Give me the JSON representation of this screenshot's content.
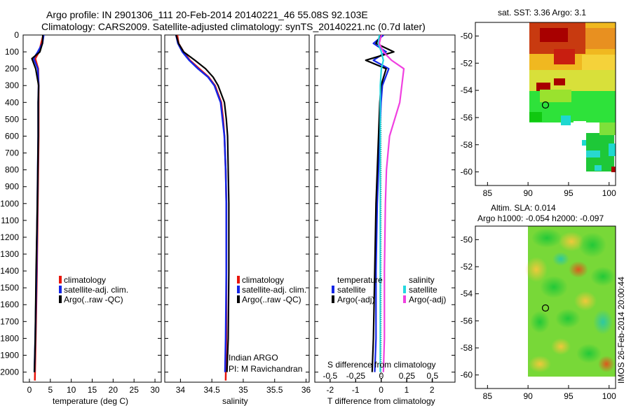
{
  "header": {
    "title1": "Argo profile: IN 2901306_111 20-Feb-2014 20140221_46 55.08S 92.103E",
    "title2": "Climatology: CARS2009. Satellite-adjusted climatology: synTS_20140221.nc (0.7d later)"
  },
  "depth_ticks": [
    "0",
    "100",
    "200",
    "300",
    "400",
    "500",
    "600",
    "700",
    "800",
    "900",
    "1000",
    "1100",
    "1200",
    "1300",
    "1400",
    "1500",
    "1600",
    "1700",
    "1800",
    "1900",
    "2000"
  ],
  "colors": {
    "climatology": "#e8160c",
    "satellite": "#1426e6",
    "argo": "#000000",
    "sat_salinity": "#24d8e0",
    "argo_salinity_diff": "#f040e0"
  },
  "panels": {
    "temperature": {
      "xlabel": "temperature (deg C)",
      "xticks": [
        "0",
        "5",
        "10",
        "15",
        "20",
        "25",
        "30"
      ],
      "legend": [
        "climatology",
        "satellite-adj. clim.",
        "Argo(..raw -QC)"
      ]
    },
    "salinity": {
      "xlabel": "salinity",
      "xticks": [
        "34",
        "34.5",
        "35",
        "35.5",
        "36"
      ],
      "legend": [
        "climatology",
        "satellite-adj. clim.",
        "Argo(..raw -QC)"
      ],
      "note1": "Indian ARGO",
      "note2": "PI: M Ravichandran"
    },
    "difference": {
      "xlabel": "T difference from climatology",
      "xticks": [
        "-2",
        "-1",
        "0",
        "1",
        "2"
      ],
      "xlabel_top": "S difference from climatology",
      "xticks_top": [
        "-0.5",
        "-0.25",
        "0",
        "0.25",
        "0.5"
      ],
      "legend_t_title": "temperature",
      "legend_t": [
        "satellite",
        "Argo(-adj)"
      ],
      "legend_s_title": "salinity",
      "legend_s": [
        "satellite",
        "Argo(-adj)"
      ]
    }
  },
  "maps": {
    "sst": {
      "title": "sat. SST: 3.36 Argo: 3.1",
      "xticks": [
        "85",
        "90",
        "95",
        "100"
      ],
      "yticks": [
        "-50",
        "-52",
        "-54",
        "-56",
        "-58",
        "-60"
      ]
    },
    "sla": {
      "title1": "Altim. SLA: 0.014",
      "title2": "Argo h1000: -0.054 h2000: -0.097",
      "xticks": [
        "85",
        "90",
        "95",
        "100"
      ],
      "yticks": [
        "-50",
        "-52",
        "-54",
        "-56",
        "-58",
        "-60"
      ]
    },
    "float_position": {
      "lon": 92.103,
      "lat": -55.08
    }
  },
  "footer": {
    "stamp": "IMOS 26-Feb-2014 20:00:44"
  },
  "chart_data": [
    {
      "type": "line",
      "title": "",
      "xlabel": "temperature (deg C)",
      "ylabel": "",
      "xlim": [
        -1.5,
        31.5
      ],
      "ylim": [
        2060,
        0
      ],
      "series": [
        {
          "name": "climatology",
          "x": [
            3.3,
            2.8,
            2.3,
            1.4,
            2.1,
            2.2,
            2.2,
            2.2,
            2.1,
            2.0,
            1.8,
            1.5,
            1.3
          ],
          "y": [
            0,
            50,
            100,
            140,
            200,
            300,
            400,
            600,
            800,
            1000,
            1400,
            1800,
            2050
          ]
        },
        {
          "name": "satellite-adj. clim.",
          "x": [
            3.4,
            3.1,
            2.0,
            1.0,
            2.0,
            2.2,
            2.1,
            2.1,
            2.0,
            1.9,
            1.7,
            1.4,
            1.2
          ],
          "y": [
            0,
            50,
            100,
            140,
            200,
            300,
            400,
            600,
            800,
            1000,
            1400,
            1800,
            2000
          ]
        },
        {
          "name": "Argo(..raw -QC)",
          "x": [
            3.2,
            3.1,
            2.5,
            0.6,
            1.5,
            2.2,
            2.1,
            2.1,
            2.0,
            1.9,
            1.6,
            1.4,
            1.2
          ],
          "y": [
            0,
            50,
            100,
            140,
            200,
            300,
            400,
            600,
            800,
            1000,
            1400,
            1800,
            2000
          ]
        }
      ]
    },
    {
      "type": "line",
      "title": "",
      "xlabel": "salinity",
      "ylabel": "",
      "xlim": [
        33.75,
        36.05
      ],
      "ylim": [
        2060,
        0
      ],
      "series": [
        {
          "name": "climatology",
          "x": [
            33.95,
            33.97,
            34.05,
            34.15,
            34.3,
            34.45,
            34.55,
            34.6,
            34.65,
            34.68,
            34.7,
            34.72,
            34.73,
            34.73,
            34.73,
            34.72
          ],
          "y": [
            0,
            50,
            100,
            150,
            200,
            250,
            300,
            350,
            400,
            500,
            600,
            800,
            1000,
            1400,
            1800,
            2050
          ]
        },
        {
          "name": "satellite-adj. clim.",
          "x": [
            33.93,
            33.96,
            34.03,
            34.14,
            34.28,
            34.44,
            34.54,
            34.59,
            34.64,
            34.67,
            34.7,
            34.72,
            34.73,
            34.73,
            34.72,
            34.71
          ],
          "y": [
            0,
            50,
            100,
            150,
            200,
            250,
            300,
            350,
            400,
            500,
            600,
            800,
            1000,
            1400,
            1800,
            2000
          ]
        },
        {
          "name": "Argo(..raw -QC)",
          "x": [
            33.93,
            33.97,
            34.05,
            34.23,
            34.4,
            34.52,
            34.6,
            34.65,
            34.7,
            34.73,
            34.75,
            34.76,
            34.77,
            34.77,
            34.76,
            34.74
          ],
          "y": [
            0,
            50,
            100,
            150,
            200,
            250,
            300,
            350,
            400,
            500,
            600,
            800,
            1000,
            1400,
            1800,
            2000
          ]
        }
      ]
    },
    {
      "type": "line",
      "title": "",
      "xlabel": "T difference from climatology",
      "ylabel": "",
      "xlim": [
        -2.6,
        2.9
      ],
      "ylim": [
        2060,
        0
      ],
      "series": [
        {
          "name": "temperature satellite",
          "x": [
            0.1,
            -0.3,
            0.2,
            -0.3,
            0.3,
            0.05,
            0.0,
            -0.05,
            -0.1,
            -0.15,
            -0.2,
            -0.2,
            -0.25
          ],
          "y": [
            0,
            50,
            100,
            150,
            200,
            300,
            400,
            600,
            800,
            1000,
            1400,
            1800,
            2000
          ]
        },
        {
          "name": "temperature Argo(-adj)",
          "x": [
            0.0,
            -0.2,
            0.5,
            -0.6,
            0.2,
            0.0,
            -0.05,
            -0.1,
            -0.15,
            -0.2,
            -0.25,
            -0.3,
            -0.35
          ],
          "y": [
            0,
            50,
            100,
            150,
            200,
            300,
            400,
            600,
            800,
            1000,
            1400,
            1800,
            2000
          ]
        }
      ]
    },
    {
      "type": "line",
      "title": "",
      "xlabel": "S difference from climatology",
      "ylabel": "",
      "xlim": [
        -0.65,
        0.72
      ],
      "ylim": [
        2060,
        0
      ],
      "series": [
        {
          "name": "salinity satellite",
          "x": [
            -0.02,
            -0.03,
            0.0,
            0.02,
            0.0,
            -0.01,
            -0.01,
            -0.01,
            -0.01,
            -0.01,
            -0.01,
            -0.01,
            -0.01
          ],
          "y": [
            0,
            50,
            100,
            150,
            200,
            300,
            400,
            600,
            800,
            1000,
            1400,
            1800,
            2000
          ]
        },
        {
          "name": "salinity Argo(-adj)",
          "x": [
            0.0,
            -0.02,
            0.02,
            0.1,
            0.22,
            0.2,
            0.18,
            0.08,
            0.05,
            0.04,
            0.03,
            0.03,
            0.02
          ],
          "y": [
            0,
            50,
            100,
            150,
            200,
            300,
            400,
            600,
            800,
            1000,
            1400,
            1800,
            2000
          ]
        }
      ]
    }
  ]
}
